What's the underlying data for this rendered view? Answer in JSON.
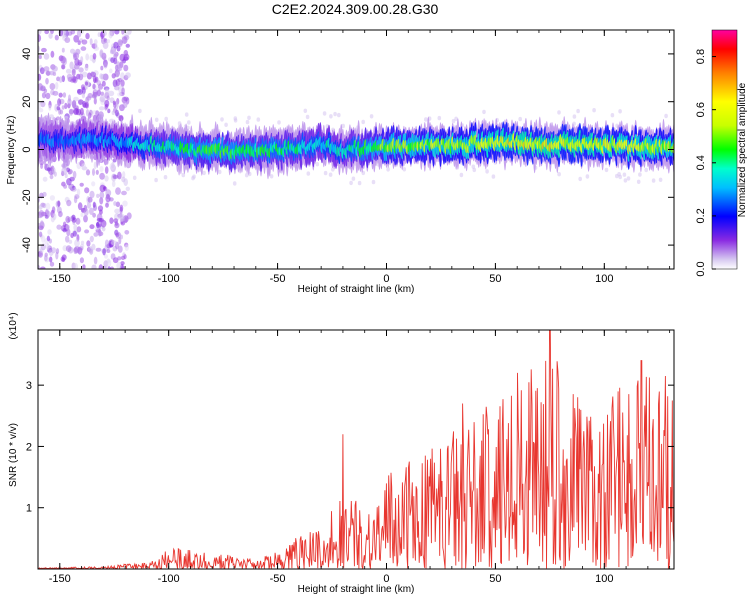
{
  "title": "C2E2.2024.309.00.28.G30",
  "chart_data": [
    {
      "type": "heatmap",
      "xlabel": "Height of straight line (km)",
      "ylabel": "Frequency (Hz)",
      "xlim": [
        -160,
        132
      ],
      "ylim": [
        -50,
        50
      ],
      "x_ticks": [
        -150,
        -100,
        -50,
        0,
        50,
        100
      ],
      "y_ticks": [
        -40,
        -20,
        0,
        20,
        40
      ],
      "grid": false,
      "colorbar": {
        "label": "Normalized spectral amplitude",
        "range": [
          0,
          0.9
        ],
        "ticks": [
          "0.0",
          "0.2",
          "0.4",
          "0.6",
          "0.8"
        ],
        "colormap": [
          "#d6c8f0",
          "#8a2be2",
          "#4b00ff",
          "#0000ff",
          "#00bfff",
          "#00ffcc",
          "#00ff00",
          "#c8ff00",
          "#ffff00",
          "#ff8000",
          "#ff0000",
          "#ff00a0"
        ]
      },
      "band": {
        "center_hz": [
          [
            -160,
            4
          ],
          [
            -130,
            4
          ],
          [
            -110,
            2
          ],
          [
            -90,
            0
          ],
          [
            -70,
            -1
          ],
          [
            -50,
            0
          ],
          [
            -30,
            2
          ],
          [
            -20,
            0
          ],
          [
            0,
            1
          ],
          [
            30,
            2
          ],
          [
            60,
            3
          ],
          [
            90,
            2
          ],
          [
            132,
            1
          ]
        ],
        "width_hz": 9,
        "peak_amplitude": [
          [
            -160,
            0.25
          ],
          [
            -120,
            0.3
          ],
          [
            -100,
            0.4
          ],
          [
            -80,
            0.45
          ],
          [
            -50,
            0.4
          ],
          [
            -20,
            0.35
          ],
          [
            0,
            0.5
          ],
          [
            30,
            0.55
          ],
          [
            60,
            0.6
          ],
          [
            90,
            0.6
          ],
          [
            132,
            0.55
          ]
        ]
      }
    },
    {
      "type": "line",
      "xlabel": "Height of straight line (km)",
      "ylabel": "SNR (10 * v/v)",
      "y_multiplier": "(x10⁴)",
      "xlim": [
        -160,
        132
      ],
      "ylim": [
        0,
        3.9
      ],
      "x_ticks": [
        -150,
        -100,
        -50,
        0,
        50,
        100
      ],
      "y_ticks": [
        1,
        2,
        3
      ],
      "color": "#e8362f",
      "envelope": [
        [
          -160,
          0.02
        ],
        [
          -130,
          0.04
        ],
        [
          -110,
          0.12
        ],
        [
          -100,
          0.35
        ],
        [
          -80,
          0.28
        ],
        [
          -60,
          0.15
        ],
        [
          -50,
          0.3
        ],
        [
          -40,
          0.55
        ],
        [
          -30,
          0.75
        ],
        [
          -20,
          1.3
        ],
        [
          -10,
          1.0
        ],
        [
          0,
          1.55
        ],
        [
          20,
          2.0
        ],
        [
          40,
          2.55
        ],
        [
          60,
          2.9
        ],
        [
          75,
          3.9
        ],
        [
          90,
          2.7
        ],
        [
          100,
          2.65
        ],
        [
          115,
          3.4
        ],
        [
          132,
          2.75
        ]
      ],
      "notable_peaks": [
        {
          "x": -20,
          "y": 2.2
        },
        {
          "x": 35,
          "y": 2.7
        },
        {
          "x": 60,
          "y": 3.2
        },
        {
          "x": 75,
          "y": 3.9
        },
        {
          "x": 117,
          "y": 3.4
        },
        {
          "x": 128,
          "y": 3.15
        }
      ]
    }
  ]
}
